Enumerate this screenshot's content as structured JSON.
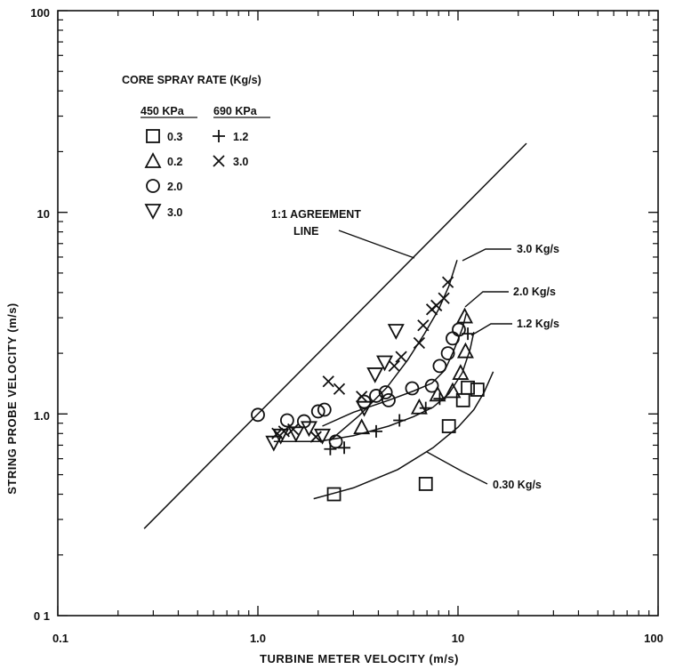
{
  "chart_data": {
    "type": "scatter",
    "x_scale": "log",
    "y_scale": "log",
    "xlim": [
      0.1,
      100
    ],
    "ylim": [
      0.1,
      100
    ],
    "grid": false,
    "xlabel": "TURBINE METER VELOCITY (m/s)",
    "ylabel": "STRING PROBE VELOCITY (m/s)",
    "x_tick_labels": [
      "0.1",
      "1.0",
      "10",
      "100"
    ],
    "y_tick_labels": [
      "0 1",
      "1.0",
      "10",
      "100"
    ],
    "legend": {
      "title": "CORE SPRAY RATE (Kg/s)",
      "placement": "top-left",
      "groups": [
        "450 KPa",
        "690 KPa"
      ],
      "entries": [
        {
          "marker": "square",
          "group": "450 KPa",
          "label": "0.3"
        },
        {
          "marker": "triangle-up",
          "group": "450 KPa",
          "label": "0.2"
        },
        {
          "marker": "circle",
          "group": "450 KPa",
          "label": "2.0"
        },
        {
          "marker": "triangle-down",
          "group": "450 KPa",
          "label": "3.0"
        },
        {
          "marker": "plus",
          "group": "690 KPa",
          "label": "1.2"
        },
        {
          "marker": "x",
          "group": "690 KPa",
          "label": "3.0"
        }
      ]
    },
    "series": [
      {
        "marker": "square",
        "points": [
          [
            2.4,
            0.4
          ],
          [
            6.9,
            0.45
          ],
          [
            9.0,
            0.87
          ],
          [
            10.6,
            1.17
          ],
          [
            12.5,
            1.32
          ],
          [
            11.2,
            1.35
          ]
        ]
      },
      {
        "marker": "triangle-up",
        "points": [
          [
            3.3,
            0.86
          ],
          [
            6.4,
            1.08
          ],
          [
            7.9,
            1.25
          ],
          [
            9.4,
            1.3
          ],
          [
            10.3,
            1.6
          ],
          [
            10.9,
            2.05
          ],
          [
            10.8,
            3.05
          ]
        ]
      },
      {
        "marker": "circle",
        "points": [
          [
            1.0,
            0.99
          ],
          [
            1.4,
            0.93
          ],
          [
            1.7,
            0.92
          ],
          [
            2.0,
            1.03
          ],
          [
            2.15,
            1.05
          ],
          [
            2.45,
            0.73
          ],
          [
            3.4,
            1.15
          ],
          [
            3.9,
            1.23
          ],
          [
            4.35,
            1.28
          ],
          [
            4.5,
            1.17
          ],
          [
            5.9,
            1.34
          ],
          [
            7.4,
            1.38
          ],
          [
            8.1,
            1.73
          ],
          [
            8.9,
            2.0
          ],
          [
            9.4,
            2.37
          ],
          [
            10.1,
            2.62
          ]
        ]
      },
      {
        "marker": "triangle-down",
        "points": [
          [
            1.2,
            0.72
          ],
          [
            1.3,
            0.78
          ],
          [
            1.55,
            0.8
          ],
          [
            1.8,
            0.85
          ],
          [
            2.1,
            0.78
          ],
          [
            3.4,
            1.07
          ],
          [
            3.85,
            1.57
          ],
          [
            4.3,
            1.8
          ],
          [
            4.9,
            2.58
          ]
        ]
      },
      {
        "marker": "plus",
        "points": [
          [
            2.3,
            0.67
          ],
          [
            2.7,
            0.68
          ],
          [
            3.9,
            0.82
          ],
          [
            5.1,
            0.93
          ],
          [
            6.9,
            1.07
          ],
          [
            8.1,
            1.19
          ],
          [
            11.2,
            2.5
          ]
        ]
      },
      {
        "marker": "x",
        "points": [
          [
            1.25,
            0.8
          ],
          [
            1.35,
            0.82
          ],
          [
            1.5,
            0.84
          ],
          [
            1.95,
            0.77
          ],
          [
            2.25,
            1.45
          ],
          [
            2.55,
            1.33
          ],
          [
            3.3,
            1.22
          ],
          [
            4.8,
            1.73
          ],
          [
            5.2,
            1.92
          ],
          [
            6.4,
            2.25
          ],
          [
            6.7,
            2.75
          ],
          [
            7.4,
            3.3
          ],
          [
            7.8,
            3.45
          ],
          [
            8.5,
            3.75
          ],
          [
            8.9,
            4.5
          ]
        ]
      }
    ],
    "curves": [
      {
        "label": "1:1 AGREEMENT LINE",
        "points": [
          [
            0.27,
            0.27
          ],
          [
            22,
            22
          ]
        ]
      },
      {
        "label": "3.0 Kg/s",
        "points": [
          [
            2.3,
            0.74
          ],
          [
            3.2,
            0.98
          ],
          [
            4.4,
            1.35
          ],
          [
            5.6,
            1.85
          ],
          [
            6.8,
            2.5
          ],
          [
            8.0,
            3.3
          ],
          [
            9.0,
            4.3
          ],
          [
            9.9,
            5.8
          ]
        ]
      },
      {
        "label": "2.0 Kg/s",
        "points": [
          [
            2.1,
            0.87
          ],
          [
            3.0,
            1.02
          ],
          [
            4.5,
            1.17
          ],
          [
            6.0,
            1.3
          ],
          [
            7.4,
            1.42
          ],
          [
            8.6,
            1.65
          ],
          [
            9.5,
            2.05
          ],
          [
            10.5,
            2.65
          ],
          [
            11.0,
            3.15
          ]
        ]
      },
      {
        "label": "1.2 Kg/s",
        "points": [
          [
            1.2,
            0.73
          ],
          [
            2.0,
            0.73
          ],
          [
            3.0,
            0.78
          ],
          [
            4.5,
            0.87
          ],
          [
            6.0,
            0.97
          ],
          [
            7.5,
            1.08
          ],
          [
            9.0,
            1.26
          ],
          [
            10.5,
            1.6
          ],
          [
            11.5,
            2.1
          ],
          [
            12.0,
            2.55
          ]
        ]
      },
      {
        "label": "0.30 Kg/s",
        "points": [
          [
            1.9,
            0.38
          ],
          [
            3.0,
            0.43
          ],
          [
            5.0,
            0.53
          ],
          [
            7.5,
            0.68
          ],
          [
            10.0,
            0.86
          ],
          [
            12.0,
            1.05
          ],
          [
            13.5,
            1.28
          ],
          [
            15.0,
            1.62
          ]
        ]
      }
    ],
    "annotations": [
      "1:1 AGREEMENT",
      "LINE",
      "3.0 Kg/s",
      "2.0 Kg/s",
      "1.2 Kg/s",
      "0.30 Kg/s"
    ]
  }
}
